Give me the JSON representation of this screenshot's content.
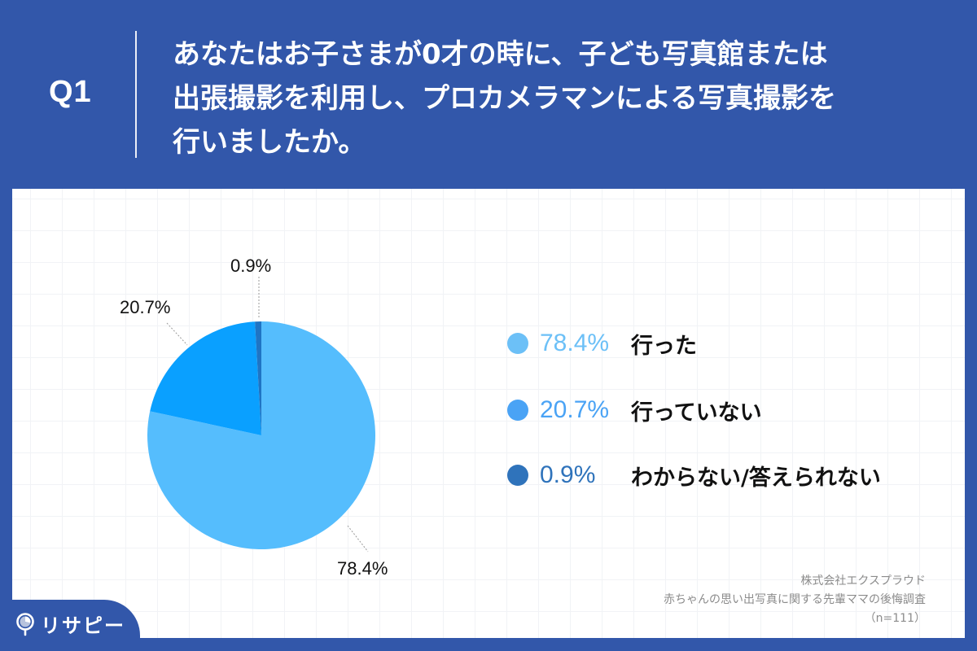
{
  "header": {
    "q_label": "Q1",
    "question_lines": [
      "あなたはお子さまが0才の時に、子ども写真館または",
      "出張撮影を利用し、プロカメラマンによる写真撮影を",
      "行いましたか。"
    ]
  },
  "chart_data": {
    "type": "pie",
    "title": "あなたはお子さまが0才の時に、子ども写真館または出張撮影を利用し、プロカメラマンによる写真撮影を行いましたか。",
    "categories": [
      "行った",
      "行っていない",
      "わからない/答えられない"
    ],
    "values": [
      78.4,
      20.7,
      0.9
    ],
    "unit": "%",
    "slice_colors": [
      "#55bdfd",
      "#0aa0ff",
      "#1f74c4"
    ],
    "legend_colors": [
      "#6cc0f7",
      "#4aa3f5",
      "#2f73bb"
    ],
    "data_labels": [
      "78.4%",
      "20.7%",
      "0.9%"
    ],
    "start_angle_deg": 0,
    "direction": "counterclockwise-from-top for minor slices",
    "legend_position": "right",
    "n": 111
  },
  "pie_labels": {
    "major": "78.4%",
    "mid": "20.7%",
    "small": "0.9%"
  },
  "legend": [
    {
      "pct": "78.4%",
      "name": "行った"
    },
    {
      "pct": "20.7%",
      "name": "行っていない"
    },
    {
      "pct": "0.9%",
      "name": "わからない/答えられない"
    }
  ],
  "source": {
    "company": "株式会社エクスプラウド",
    "survey": "赤ちゃんの思い出写真に関する先輩ママの後悔調査",
    "sample": "（n=111）"
  },
  "logo": {
    "text": "リサピー",
    "icon": "magnifier-pie-icon"
  },
  "colors": {
    "brand_blue": "#3257aa",
    "panel_bg": "#ffffff",
    "grid": "#f1f3f6"
  }
}
